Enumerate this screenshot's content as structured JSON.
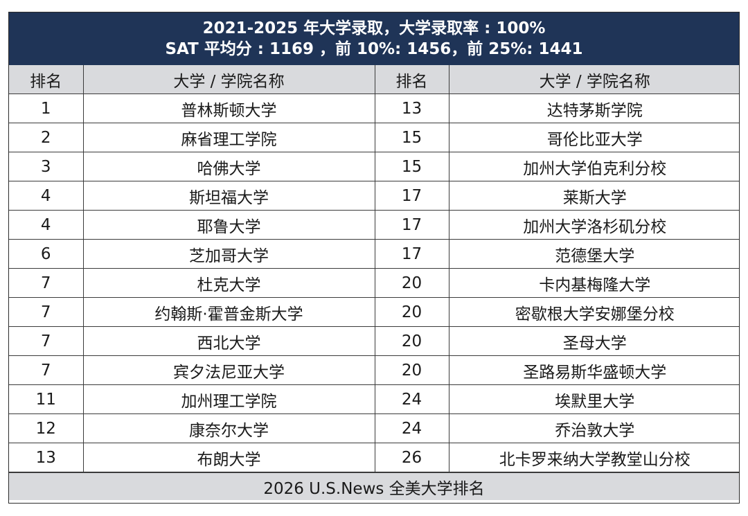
{
  "header": {
    "line1": "2021-2025 年大学录取，大学录取率 : 100%",
    "line2": "SAT 平均分 : 1169 ，前 10%: 1456，前 25%: 1441"
  },
  "table": {
    "columns": [
      "排名",
      "大学 / 学院名称",
      "排名",
      "大学 / 学院名称"
    ],
    "rows": [
      {
        "left_rank": "1",
        "left_name": "普林斯顿大学",
        "right_rank": "13",
        "right_name": "达特茅斯学院"
      },
      {
        "left_rank": "2",
        "left_name": "麻省理工学院",
        "right_rank": "15",
        "right_name": "哥伦比亚大学"
      },
      {
        "left_rank": "3",
        "left_name": "哈佛大学",
        "right_rank": "15",
        "right_name": "加州大学伯克利分校"
      },
      {
        "left_rank": "4",
        "left_name": "斯坦福大学",
        "right_rank": "17",
        "right_name": "莱斯大学"
      },
      {
        "left_rank": "4",
        "left_name": "耶鲁大学",
        "right_rank": "17",
        "right_name": "加州大学洛杉矶分校"
      },
      {
        "left_rank": "6",
        "left_name": "芝加哥大学",
        "right_rank": "17",
        "right_name": "范德堡大学"
      },
      {
        "left_rank": "7",
        "left_name": "杜克大学",
        "right_rank": "20",
        "right_name": "卡内基梅隆大学"
      },
      {
        "left_rank": "7",
        "left_name": "约翰斯·霍普金斯大学",
        "right_rank": "20",
        "right_name": "密歇根大学安娜堡分校"
      },
      {
        "left_rank": "7",
        "left_name": "西北大学",
        "right_rank": "20",
        "right_name": "圣母大学"
      },
      {
        "left_rank": "7",
        "left_name": "宾夕法尼亚大学",
        "right_rank": "20",
        "right_name": "圣路易斯华盛顿大学"
      },
      {
        "left_rank": "11",
        "left_name": "加州理工学院",
        "right_rank": "24",
        "right_name": "埃默里大学"
      },
      {
        "left_rank": "12",
        "left_name": "康奈尔大学",
        "right_rank": "24",
        "right_name": "乔治敦大学"
      },
      {
        "left_rank": "13",
        "left_name": "布朗大学",
        "right_rank": "26",
        "right_name": "北卡罗来纳大学教堂山分校"
      }
    ]
  },
  "footer": {
    "text": "2026 U.S.News 全美大学排名"
  },
  "colors": {
    "banner_bg": "#1f3457",
    "header_row_bg": "#d9dadd",
    "footer_bg": "#d9dadd"
  }
}
